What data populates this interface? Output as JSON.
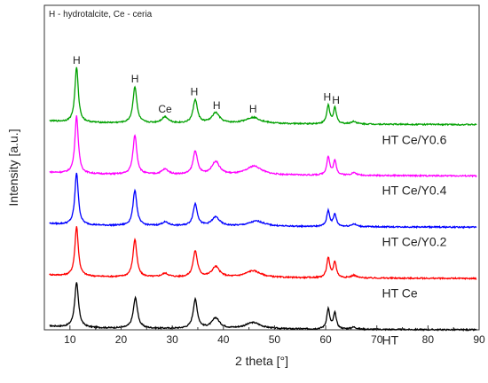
{
  "chart_data": {
    "type": "line",
    "title": "",
    "note": "H - hydrotalcite, Ce - ceria",
    "xlabel": "2 theta [°]",
    "ylabel": "Intensity [a.u.]",
    "xlim": [
      5,
      90
    ],
    "ylim": [
      0,
      6.2
    ],
    "xticks": [
      10,
      20,
      30,
      40,
      50,
      60,
      70,
      80,
      90
    ],
    "grid": false,
    "legend": "none",
    "series": [
      {
        "name": "HT",
        "color": "#000000",
        "offset": 0.0,
        "baseline_end": 0.03,
        "peaks": [
          [
            11.3,
            0.85,
            0.45
          ],
          [
            22.8,
            0.58,
            0.5
          ],
          [
            34.5,
            0.55,
            0.5
          ],
          [
            38.5,
            0.2,
            0.9
          ],
          [
            45.8,
            0.12,
            1.8
          ],
          [
            60.5,
            0.38,
            0.35
          ],
          [
            61.8,
            0.3,
            0.35
          ],
          [
            65.5,
            0.04,
            0.6
          ]
        ]
      },
      {
        "name": "HT Ce",
        "color": "#ff0000",
        "offset": 0.98,
        "baseline_end": 0.03,
        "peaks": [
          [
            11.3,
            0.95,
            0.4
          ],
          [
            22.7,
            0.72,
            0.45
          ],
          [
            28.6,
            0.07,
            0.8
          ],
          [
            34.5,
            0.5,
            0.5
          ],
          [
            38.5,
            0.2,
            0.9
          ],
          [
            45.8,
            0.13,
            1.8
          ],
          [
            60.5,
            0.38,
            0.35
          ],
          [
            61.8,
            0.3,
            0.35
          ],
          [
            65.5,
            0.05,
            0.6
          ]
        ]
      },
      {
        "name": "HT Ce/Y0.2",
        "color": "#0000ff",
        "offset": 1.96,
        "baseline_end": 0.03,
        "peaks": [
          [
            11.3,
            1.0,
            0.4
          ],
          [
            22.7,
            0.68,
            0.45
          ],
          [
            28.6,
            0.07,
            0.8
          ],
          [
            34.5,
            0.42,
            0.5
          ],
          [
            38.5,
            0.17,
            0.9
          ],
          [
            46.5,
            0.1,
            1.8
          ],
          [
            60.5,
            0.3,
            0.35
          ],
          [
            61.8,
            0.23,
            0.35
          ],
          [
            65.5,
            0.05,
            0.6
          ]
        ]
      },
      {
        "name": "HT Ce/Y0.4",
        "color": "#ff00ff",
        "offset": 2.94,
        "baseline_end": 0.03,
        "peaks": [
          [
            11.3,
            1.1,
            0.4
          ],
          [
            22.7,
            0.75,
            0.45
          ],
          [
            28.6,
            0.1,
            0.8
          ],
          [
            34.5,
            0.45,
            0.5
          ],
          [
            38.5,
            0.25,
            0.9
          ],
          [
            46.0,
            0.17,
            1.8
          ],
          [
            60.5,
            0.35,
            0.35
          ],
          [
            61.8,
            0.27,
            0.35
          ],
          [
            65.5,
            0.05,
            0.6
          ]
        ]
      },
      {
        "name": "HT Ce/Y0.6",
        "color": "#00a000",
        "offset": 3.92,
        "baseline_end": 0.03,
        "peaks": [
          [
            11.3,
            1.05,
            0.4
          ],
          [
            22.7,
            0.7,
            0.45
          ],
          [
            28.6,
            0.12,
            0.8
          ],
          [
            34.5,
            0.45,
            0.5
          ],
          [
            38.5,
            0.2,
            0.9
          ],
          [
            45.8,
            0.12,
            1.8
          ],
          [
            60.5,
            0.35,
            0.35
          ],
          [
            61.8,
            0.3,
            0.35
          ],
          [
            65.5,
            0.05,
            0.6
          ]
        ]
      }
    ],
    "peak_labels": [
      {
        "text": "H",
        "x": 11.3,
        "y": 5.08
      },
      {
        "text": "H",
        "x": 22.7,
        "y": 4.73
      },
      {
        "text": "Ce",
        "x": 28.6,
        "y": 4.15
      },
      {
        "text": "H",
        "x": 34.3,
        "y": 4.48
      },
      {
        "text": "H",
        "x": 38.7,
        "y": 4.22
      },
      {
        "text": "H",
        "x": 45.8,
        "y": 4.15
      },
      {
        "text": "H",
        "x": 60.3,
        "y": 4.38
      },
      {
        "text": "H",
        "x": 62.0,
        "y": 4.32
      }
    ],
    "series_labels": [
      {
        "text": "HT Ce/Y0.6",
        "x": 71.0,
        "y": 3.55
      },
      {
        "text": "HT Ce/Y0.4",
        "x": 71.0,
        "y": 2.58
      },
      {
        "text": "HT Ce/Y0.2",
        "x": 71.0,
        "y": 1.6
      },
      {
        "text": "HT Ce",
        "x": 71.0,
        "y": 0.62
      },
      {
        "text": "HT",
        "x": 71.0,
        "y": -0.28
      }
    ]
  }
}
